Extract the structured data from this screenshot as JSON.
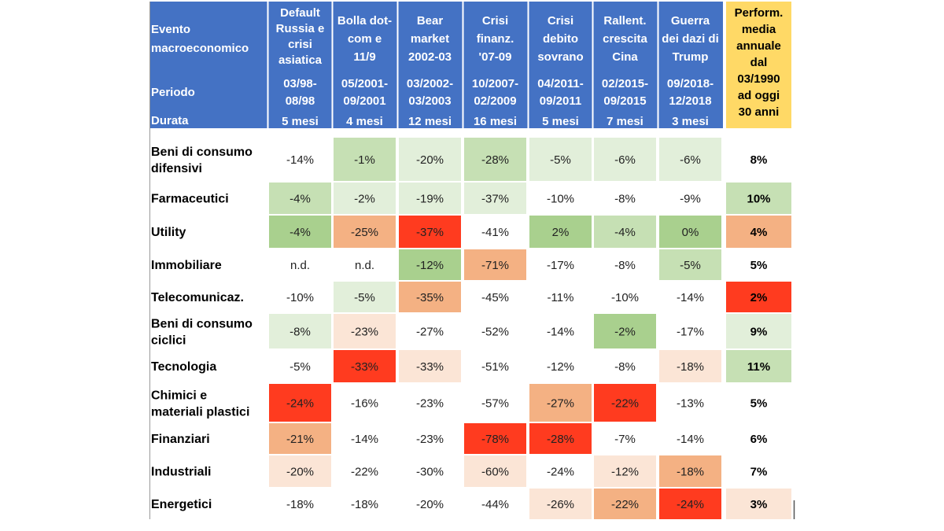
{
  "header": {
    "event_label": [
      "Evento",
      "macroeconomico"
    ],
    "period_label": "Periodo",
    "duration_label": "Durata",
    "events": [
      {
        "name": [
          "Default",
          "Russia e",
          "crisi",
          "asiatica"
        ],
        "period": [
          "03/98-",
          "08/98"
        ],
        "duration": "5 mesi"
      },
      {
        "name": [
          "Bolla dot-",
          "com e",
          "11/9"
        ],
        "period": [
          "05/2001-",
          "09/2001"
        ],
        "duration": "4 mesi"
      },
      {
        "name": [
          "Bear",
          "market",
          "2002-03"
        ],
        "period": [
          "03/2002-",
          "03/2003"
        ],
        "duration": "12 mesi"
      },
      {
        "name": [
          "Crisi",
          "finanz.",
          "'07-09"
        ],
        "period": [
          "10/2007-",
          "02/2009"
        ],
        "duration": "16 mesi"
      },
      {
        "name": [
          "Crisi",
          "debito",
          "sovrano"
        ],
        "period": [
          "04/2011-",
          "09/2011"
        ],
        "duration": "5 mesi"
      },
      {
        "name": [
          "Rallent.",
          "crescita",
          "Cina"
        ],
        "period": [
          "02/2015-",
          "09/2015"
        ],
        "duration": "7 mesi"
      },
      {
        "name": [
          "Guerra",
          "dei dazi di",
          "Trump"
        ],
        "period": [
          "09/2018-",
          "12/2018"
        ],
        "duration": "3 mesi"
      }
    ],
    "avg_column": [
      "Perform.",
      "media",
      "annuale",
      "dal",
      "03/1990",
      "ad oggi",
      "30 anni"
    ]
  },
  "colors": {
    "header_blue": "#4472c4",
    "header_gold": "#ffd966",
    "green_strong": "#a9d08e",
    "green_mid": "#c6e0b4",
    "green_light": "#e2efda",
    "red_strong": "#ff3b1f",
    "salmon": "#f4b183",
    "peach": "#fbe5d6"
  },
  "chart_data": {
    "type": "heatmap",
    "title": "",
    "sectors": [
      {
        "name": [
          "Beni di consumo",
          "difensivi"
        ],
        "values": [
          "-14%",
          "-1%",
          "-20%",
          "-28%",
          "-5%",
          "-6%",
          "-6%"
        ],
        "avg": "8%",
        "shades": [
          "none",
          "green_mid",
          "green_light",
          "green_mid",
          "green_light",
          "green_light",
          "green_light"
        ],
        "avg_shade": "none"
      },
      {
        "name": [
          "Farmaceutici"
        ],
        "values": [
          "-4%",
          "-2%",
          "-19%",
          "-37%",
          "-10%",
          "-8%",
          "-9%"
        ],
        "avg": "10%",
        "shades": [
          "green_mid",
          "green_light",
          "green_light",
          "green_light",
          "none",
          "none",
          "none"
        ],
        "avg_shade": "green_mid"
      },
      {
        "name": [
          "Utility"
        ],
        "values": [
          "-4%",
          "-25%",
          "-37%",
          "-41%",
          "2%",
          "-4%",
          "0%"
        ],
        "avg": "4%",
        "shades": [
          "green_strong",
          "salmon",
          "red_strong",
          "none",
          "green_strong",
          "green_mid",
          "green_strong"
        ],
        "avg_shade": "salmon"
      },
      {
        "name": [
          "Immobiliare"
        ],
        "values": [
          "n.d.",
          "n.d.",
          "-12%",
          "-71%",
          "-17%",
          "-8%",
          "-5%"
        ],
        "avg": "5%",
        "shades": [
          "none",
          "none",
          "green_strong",
          "salmon",
          "none",
          "none",
          "green_mid"
        ],
        "avg_shade": "none"
      },
      {
        "name": [
          "Telecomunicaz."
        ],
        "values": [
          "-10%",
          "-5%",
          "-35%",
          "-45%",
          "-11%",
          "-10%",
          "-14%"
        ],
        "avg": "2%",
        "shades": [
          "none",
          "green_light",
          "salmon",
          "none",
          "none",
          "none",
          "none"
        ],
        "avg_shade": "red_strong"
      },
      {
        "name": [
          "Beni di consumo",
          "ciclici"
        ],
        "values": [
          "-8%",
          "-23%",
          "-27%",
          "-52%",
          "-14%",
          "-2%",
          "-17%"
        ],
        "avg": "9%",
        "shades": [
          "green_light",
          "peach",
          "none",
          "none",
          "none",
          "green_strong",
          "none"
        ],
        "avg_shade": "green_light"
      },
      {
        "name": [
          "Tecnologia"
        ],
        "values": [
          "-5%",
          "-33%",
          "-33%",
          "-51%",
          "-12%",
          "-8%",
          "-18%"
        ],
        "avg": "11%",
        "shades": [
          "none",
          "red_strong",
          "peach",
          "none",
          "none",
          "none",
          "peach"
        ],
        "avg_shade": "green_mid"
      },
      {
        "name": [
          "Chimici e",
          "materiali plastici"
        ],
        "values": [
          "-24%",
          "-16%",
          "-23%",
          "-57%",
          "-27%",
          "-22%",
          "-13%"
        ],
        "avg": "5%",
        "shades": [
          "red_strong",
          "none",
          "none",
          "none",
          "salmon",
          "red_strong",
          "none"
        ],
        "avg_shade": "none"
      },
      {
        "name": [
          "Finanziari"
        ],
        "values": [
          "-21%",
          "-14%",
          "-23%",
          "-78%",
          "-28%",
          "-7%",
          "-14%"
        ],
        "avg": "6%",
        "shades": [
          "salmon",
          "none",
          "none",
          "red_strong",
          "red_strong",
          "none",
          "none"
        ],
        "avg_shade": "none"
      },
      {
        "name": [
          "Industriali"
        ],
        "values": [
          "-20%",
          "-22%",
          "-30%",
          "-60%",
          "-24%",
          "-12%",
          "-18%"
        ],
        "avg": "7%",
        "shades": [
          "peach",
          "none",
          "none",
          "peach",
          "none",
          "peach",
          "salmon"
        ],
        "avg_shade": "none"
      },
      {
        "name": [
          "Energetici"
        ],
        "values": [
          "-18%",
          "-18%",
          "-20%",
          "-44%",
          "-26%",
          "-22%",
          "-24%"
        ],
        "avg": "3%",
        "shades": [
          "none",
          "none",
          "none",
          "none",
          "peach",
          "salmon",
          "red_strong"
        ],
        "avg_shade": "peach"
      }
    ]
  }
}
